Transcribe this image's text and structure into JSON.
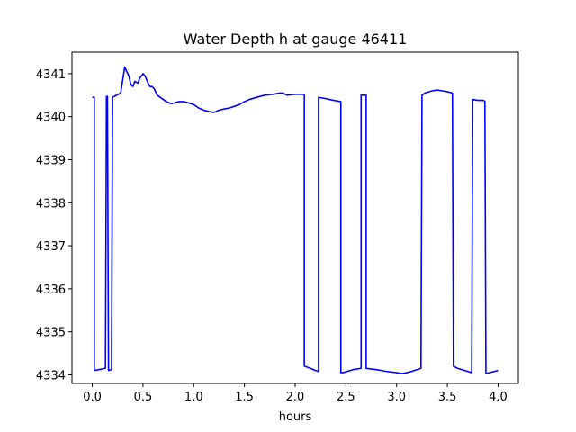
{
  "chart_data": {
    "type": "line",
    "title": "Water Depth h at gauge 46411",
    "xlabel": "hours",
    "ylabel": "",
    "xlim": [
      -0.2,
      4.2
    ],
    "ylim": [
      4333.8,
      4341.5
    ],
    "grid": false,
    "line_color": "#0000ff",
    "x_ticks": [
      0.0,
      0.5,
      1.0,
      1.5,
      2.0,
      2.5,
      3.0,
      3.5,
      4.0
    ],
    "x_tick_labels": [
      "0.0",
      "0.5",
      "1.0",
      "1.5",
      "2.0",
      "2.5",
      "3.0",
      "3.5",
      "4.0"
    ],
    "y_ticks": [
      4334,
      4335,
      4336,
      4337,
      4338,
      4339,
      4340,
      4341
    ],
    "y_tick_labels": [
      "4334",
      "4335",
      "4336",
      "4337",
      "4338",
      "4339",
      "4340",
      "4341"
    ],
    "series": [
      {
        "x": [
          0.0,
          0.02,
          0.02,
          0.13,
          0.14,
          0.15,
          0.16,
          0.16,
          0.19,
          0.2,
          0.2,
          0.28,
          0.3,
          0.32,
          0.34,
          0.36,
          0.38,
          0.4,
          0.42,
          0.45,
          0.47,
          0.5,
          0.52,
          0.55,
          0.57,
          0.59,
          0.61,
          0.64,
          0.67,
          0.7,
          0.73,
          0.78,
          0.85,
          0.9,
          0.95,
          1.0,
          1.05,
          1.1,
          1.15,
          1.2,
          1.22,
          1.25,
          1.3,
          1.35,
          1.45,
          1.5,
          1.55,
          1.62,
          1.7,
          1.78,
          1.85,
          1.88,
          1.92,
          2.0,
          2.07,
          2.09,
          2.09,
          2.15,
          2.2,
          2.23,
          2.23,
          2.3,
          2.38,
          2.45,
          2.45,
          2.47,
          2.57,
          2.65,
          2.65,
          2.7,
          2.7,
          2.8,
          2.9,
          3.0,
          3.05,
          3.1,
          3.15,
          3.2,
          3.24,
          3.25,
          3.28,
          3.35,
          3.4,
          3.45,
          3.5,
          3.55,
          3.56,
          3.6,
          3.7,
          3.74,
          3.75,
          3.8,
          3.85,
          3.87,
          3.88,
          4.0
        ],
        "y": [
          4340.45,
          4340.45,
          4334.1,
          4334.15,
          4340.47,
          4340.47,
          4334.12,
          4334.1,
          4334.12,
          4340.45,
          4340.45,
          4340.55,
          4340.85,
          4341.15,
          4341.05,
          4340.95,
          4340.75,
          4340.7,
          4340.82,
          4340.78,
          4340.9,
          4341.0,
          4340.95,
          4340.78,
          4340.7,
          4340.7,
          4340.65,
          4340.5,
          4340.45,
          4340.4,
          4340.35,
          4340.3,
          4340.35,
          4340.35,
          4340.32,
          4340.28,
          4340.2,
          4340.15,
          4340.12,
          4340.1,
          4340.12,
          4340.15,
          4340.18,
          4340.2,
          4340.28,
          4340.35,
          4340.4,
          4340.45,
          4340.5,
          4340.52,
          4340.55,
          4340.55,
          4340.5,
          4340.52,
          4340.52,
          4340.52,
          4334.2,
          4334.15,
          4334.1,
          4334.08,
          4340.45,
          4340.42,
          4340.38,
          4340.35,
          4334.05,
          4334.05,
          4334.12,
          4334.15,
          4340.5,
          4340.5,
          4334.15,
          4334.12,
          4334.08,
          4334.05,
          4334.03,
          4334.05,
          4334.08,
          4334.12,
          4334.15,
          4340.5,
          4340.55,
          4340.6,
          4340.62,
          4340.6,
          4340.58,
          4340.55,
          4334.2,
          4334.15,
          4334.08,
          4334.05,
          4340.4,
          4340.38,
          4340.38,
          4340.36,
          4334.03,
          4334.1
        ]
      }
    ]
  }
}
